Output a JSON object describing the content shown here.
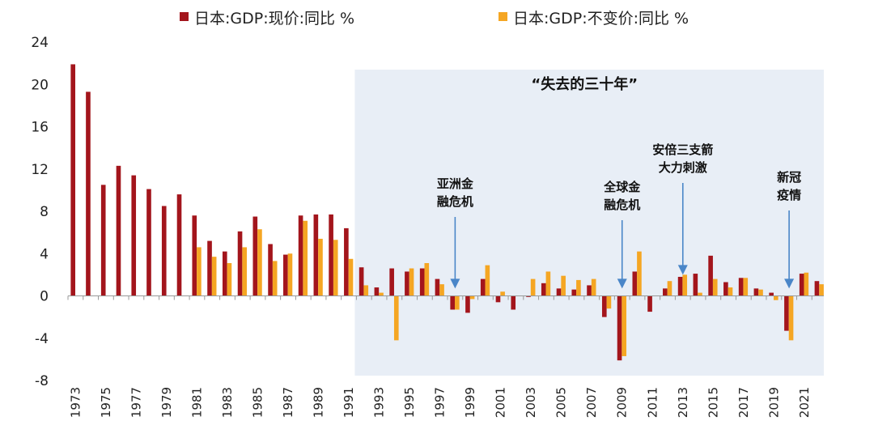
{
  "chart_data": {
    "type": "bar",
    "title": "",
    "xlabel": "",
    "ylabel": "",
    "ylim": [
      -8,
      24
    ],
    "yticks": [
      24,
      20,
      16,
      12,
      8,
      4,
      0,
      -4,
      -8
    ],
    "categories": [
      "1973",
      "1974",
      "1975",
      "1976",
      "1977",
      "1978",
      "1979",
      "1980",
      "1981",
      "1982",
      "1983",
      "1984",
      "1985",
      "1986",
      "1987",
      "1988",
      "1989",
      "1990",
      "1991",
      "1992",
      "1993",
      "1994",
      "1995",
      "1996",
      "1997",
      "1998",
      "1999",
      "2000",
      "2001",
      "2002",
      "2003",
      "2004",
      "2005",
      "2006",
      "2007",
      "2008",
      "2009",
      "2010",
      "2011",
      "2012",
      "2013",
      "2014",
      "2015",
      "2016",
      "2017",
      "2018",
      "2019",
      "2020",
      "2021",
      "2022"
    ],
    "xtick_labels": [
      "1973",
      "1975",
      "1977",
      "1979",
      "1981",
      "1983",
      "1985",
      "1987",
      "1989",
      "1991",
      "1993",
      "1995",
      "1997",
      "1999",
      "2001",
      "2003",
      "2005",
      "2007",
      "2009",
      "2011",
      "2013",
      "2015",
      "2017",
      "2019",
      "2021"
    ],
    "series": [
      {
        "name": "日本:GDP:现价:同比 %",
        "color": "#a3151c",
        "values": [
          21.9,
          19.3,
          10.5,
          12.3,
          11.4,
          10.1,
          8.5,
          9.6,
          7.6,
          5.2,
          4.2,
          6.1,
          7.5,
          4.9,
          3.9,
          7.6,
          7.7,
          7.7,
          6.4,
          2.7,
          0.8,
          2.6,
          2.3,
          2.6,
          1.6,
          -1.3,
          -1.6,
          1.6,
          -0.6,
          -1.3,
          -0.1,
          1.2,
          0.7,
          0.6,
          1.0,
          -2.0,
          -6.1,
          2.3,
          -1.5,
          0.7,
          1.8,
          2.1,
          3.8,
          1.3,
          1.7,
          0.7,
          0.3,
          -3.3,
          2.1,
          1.4
        ]
      },
      {
        "name": "日本:GDP:不变价:同比 %",
        "color": "#f5a623",
        "values": [
          0,
          0,
          0,
          0,
          0,
          0,
          0,
          0,
          4.6,
          3.7,
          3.1,
          4.6,
          6.3,
          3.3,
          4.0,
          7.1,
          5.4,
          5.3,
          3.5,
          1.0,
          0.3,
          -4.2,
          2.6,
          3.1,
          1.1,
          -1.3,
          -0.3,
          2.9,
          0.4,
          0.0,
          1.6,
          2.3,
          1.9,
          1.5,
          1.6,
          -1.2,
          -5.7,
          4.2,
          0.0,
          1.4,
          2.0,
          0.3,
          1.6,
          0.8,
          1.7,
          0.6,
          -0.4,
          -4.2,
          2.2,
          1.1
        ]
      }
    ],
    "shaded_region": {
      "from": "1992",
      "to": "2022",
      "label": "“失去的三十年”",
      "color": "#e8eef6"
    },
    "annotations": [
      {
        "year": "1998",
        "lines": [
          "亚洲金",
          "融危机"
        ],
        "arrow_to": 0.7
      },
      {
        "year": "2009",
        "lines": [
          "全球金",
          "融危机"
        ],
        "arrow_to": 0.7
      },
      {
        "year": "2013",
        "lines": [
          "安倍三支箭",
          "大力刺激"
        ],
        "arrow_to": 2.0
      },
      {
        "year": "2020",
        "lines": [
          "新冠",
          "疫情"
        ],
        "arrow_to": 0.7
      }
    ],
    "legend_position": "top"
  },
  "colors": {
    "arrow": "#4a86c8",
    "axis": "#999999"
  }
}
